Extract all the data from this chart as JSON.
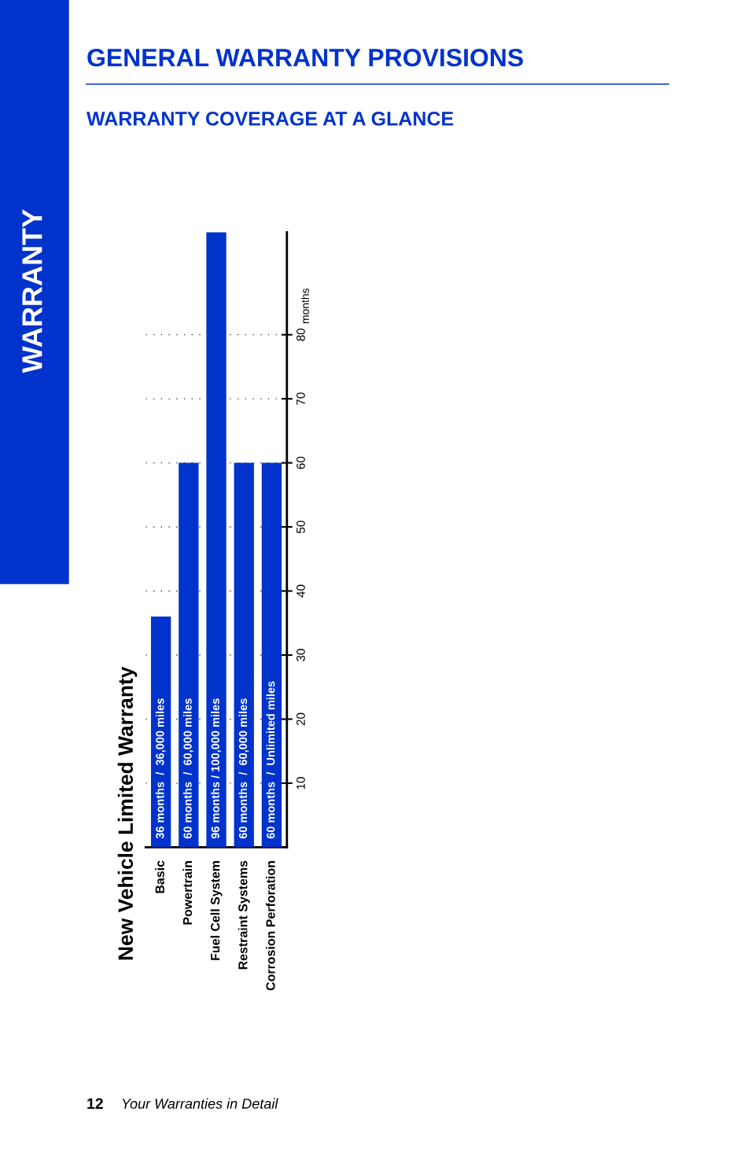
{
  "chart_data": {
    "type": "bar",
    "title": "New Vehicle Limited Warranty",
    "ylabel": "months",
    "categories": [
      "Basic",
      "Powertrain",
      "Fuel Cell System",
      "Restraint Systems",
      "Corrosion Perforation"
    ],
    "values": [
      36,
      60,
      96,
      60,
      60
    ],
    "color": "#0033cc",
    "value_labels": [
      "36 months  /  36,000 miles",
      "60 months  /  60,000 miles",
      "96 months / 100,000 miles",
      "60 months  /  60,000 miles",
      "60 months  /  Unlimited miles"
    ],
    "ylim": [
      0,
      96
    ],
    "yticks": [
      10,
      20,
      30,
      40,
      50,
      60,
      70,
      80
    ],
    "grid": "y",
    "annotations": [
      "GENERAL WARRANTY PROVISIONS",
      "WARRANTY COVERAGE AT A GLANCE",
      "WARRANTY",
      "12",
      "Your Warranties in Detail"
    ]
  }
}
